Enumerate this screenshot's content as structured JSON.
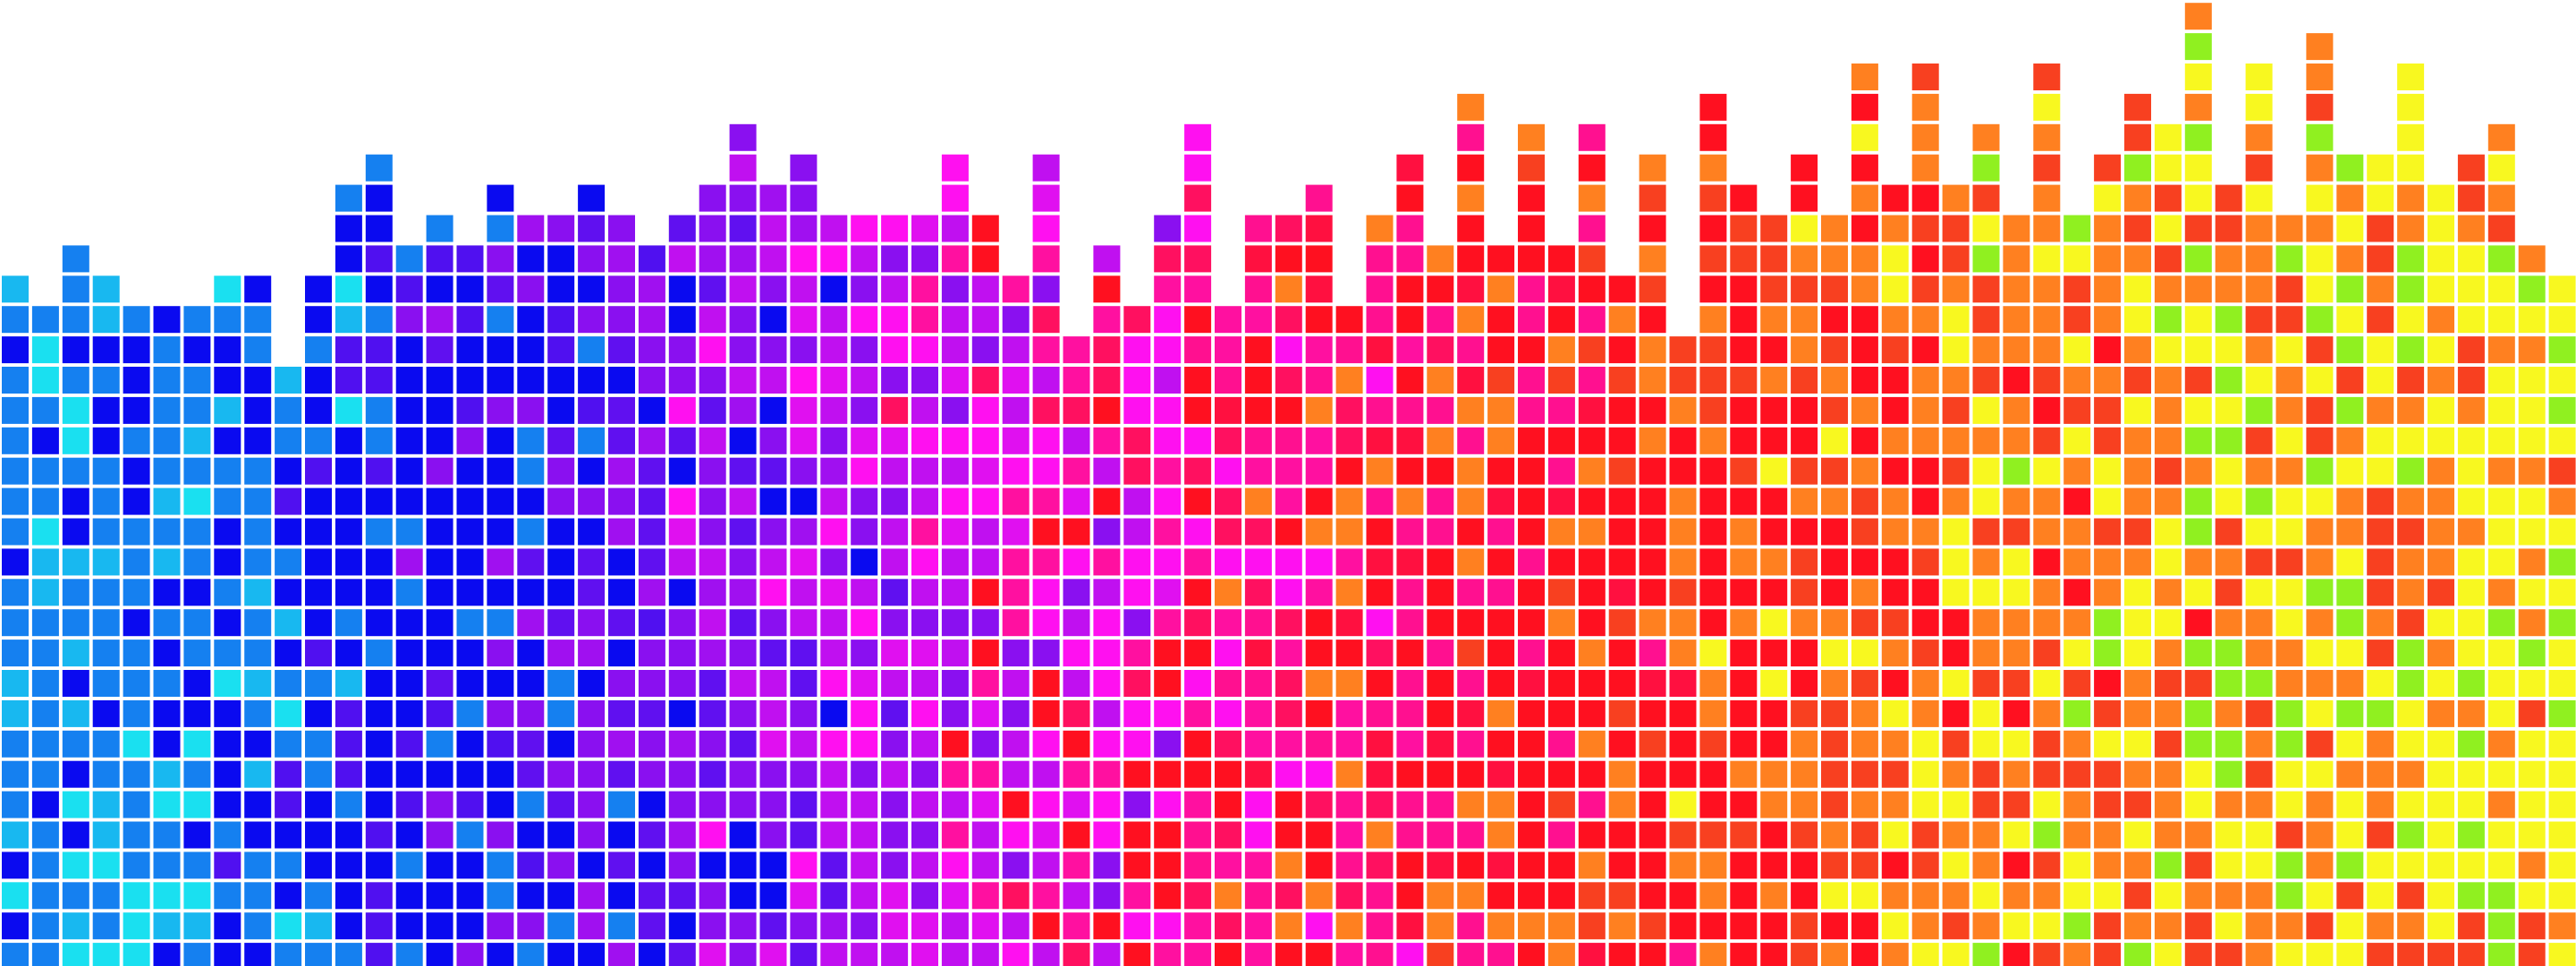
{
  "graphic": {
    "kind": "pixel equalizer mosaic",
    "total_rows": 32,
    "column_levels": [
      23,
      22,
      24,
      23,
      22,
      22,
      22,
      23,
      23,
      20,
      23,
      26,
      27,
      24,
      25,
      24,
      26,
      25,
      25,
      26,
      25,
      24,
      25,
      26,
      28,
      26,
      27,
      25,
      25,
      25,
      25,
      27,
      25,
      23,
      27,
      21,
      24,
      22,
      25,
      28,
      22,
      25,
      25,
      26,
      22,
      25,
      27,
      24,
      29,
      24,
      28,
      24,
      28,
      23,
      27,
      21,
      29,
      26,
      25,
      27,
      25,
      30,
      26,
      30,
      26,
      28,
      25,
      30,
      25,
      27,
      29,
      28,
      32,
      26,
      30,
      25,
      31,
      27,
      27,
      30,
      26,
      27,
      28,
      24,
      23
    ],
    "background": "#ffffff",
    "zones": [
      {
        "colors": [
          "#1580f0",
          "#1580f0",
          "#1ae0f0",
          "#18b8f0",
          "#0a0af0"
        ]
      },
      {
        "colors": [
          "#0a0af0",
          "#0a0af0",
          "#1580f0",
          "#5010f0"
        ]
      },
      {
        "colors": [
          "#8a10f0",
          "#6010f0",
          "#0a0af0",
          "#a010f0"
        ]
      },
      {
        "colors": [
          "#c010f0",
          "#ff10f0",
          "#8a10f0",
          "#e010f0"
        ]
      },
      {
        "colors": [
          "#ff10a0",
          "#ff10f0",
          "#ff1060",
          "#ff1020"
        ]
      },
      {
        "colors": [
          "#ff1090",
          "#ff1040",
          "#ff1020",
          "#ff8020"
        ]
      },
      {
        "colors": [
          "#ff1020",
          "#ff1020",
          "#f84020",
          "#ff8020"
        ]
      },
      {
        "colors": [
          "#ff8020",
          "#f84020",
          "#ff1020",
          "#f8f820"
        ]
      },
      {
        "colors": [
          "#ff8020",
          "#f8f820",
          "#f84020",
          "#90f020"
        ]
      },
      {
        "colors": [
          "#f8f820",
          "#f8f820",
          "#ff8020",
          "#90f020",
          "#f84020"
        ]
      }
    ]
  }
}
